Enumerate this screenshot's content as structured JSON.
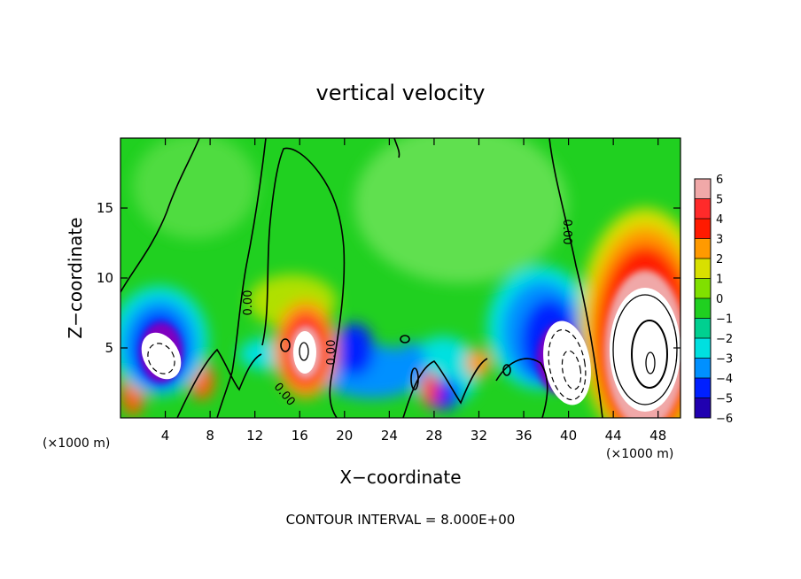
{
  "chart_data": {
    "type": "heatmap",
    "title": "vertical velocity",
    "xlabel": "X−coordinate",
    "ylabel": "Z−coordinate",
    "x_unit_left": "(×1000 m)",
    "x_unit_right": "(×1000 m)",
    "xlim": [
      0,
      50
    ],
    "ylim": [
      0,
      20
    ],
    "x_ticks": [
      4,
      8,
      12,
      16,
      20,
      24,
      28,
      32,
      36,
      40,
      44,
      48
    ],
    "y_ticks": [
      5,
      10,
      15
    ],
    "colorbar": {
      "levels": [
        6,
        5,
        4,
        3,
        2,
        1,
        0,
        -1,
        -2,
        -3,
        -4,
        -5,
        -6
      ],
      "labels": [
        "6",
        "5",
        "4",
        "3",
        "2",
        "1",
        "0",
        "−1",
        "−2",
        "−3",
        "−4",
        "−5",
        "−6"
      ],
      "colors": [
        "#f0a8a8",
        "#ff2a2a",
        "#ff1a00",
        "#ff9a00",
        "#d8e000",
        "#80e000",
        "#20d020",
        "#00d090",
        "#00e0e0",
        "#0090ff",
        "#0020ff",
        "#2000b0",
        "#8000c0"
      ]
    },
    "contour_labels": [
      "0.00",
      "0.00",
      "0.00",
      "0.00",
      "0.00"
    ],
    "annotation": "CONTOUR INTERVAL = 8.000E+00",
    "features": [
      {
        "x": 3.5,
        "z": 4.5,
        "w": -9
      },
      {
        "x": 16.5,
        "z": 5.0,
        "w": 9
      },
      {
        "x": 39.5,
        "z": 4.0,
        "w": -12
      },
      {
        "x": 46.5,
        "z": 5.5,
        "w": 18
      }
    ]
  }
}
